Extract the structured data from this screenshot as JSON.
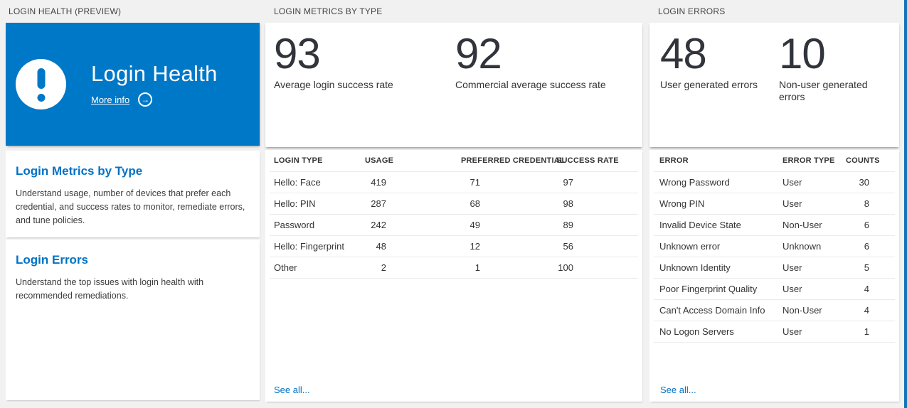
{
  "colors": {
    "accent_blue": "#0078c8",
    "link_blue": "#0072c6",
    "background": "#f1f1f1",
    "stat_text": "#31343a"
  },
  "section_headers": {
    "left": "LOGIN HEALTH (PREVIEW)",
    "middle": "LOGIN METRICS BY TYPE",
    "right": "LOGIN ERRORS"
  },
  "login_health": {
    "title": "Login Health",
    "more_info_label": "More info",
    "arrow_glyph": "→",
    "sections": [
      {
        "title": "Login Metrics by Type",
        "description": "Understand usage, number of devices that prefer each credential, and success rates to monitor, remediate errors, and tune policies."
      },
      {
        "title": "Login Errors",
        "description": "Understand the top issues with login health with recommended remediations."
      }
    ]
  },
  "login_metrics": {
    "stats": [
      {
        "value": "93",
        "label": "Average login success rate"
      },
      {
        "value": "92",
        "label": "Commercial average success rate"
      }
    ],
    "table": {
      "columns": [
        "LOGIN TYPE",
        "USAGE",
        "PREFERRED CREDENTIAL",
        "SUCCESS RATE"
      ],
      "rows": [
        [
          "Hello: Face",
          "419",
          "71",
          "97"
        ],
        [
          "Hello: PIN",
          "287",
          "68",
          "98"
        ],
        [
          "Password",
          "242",
          "49",
          "89"
        ],
        [
          "Hello: Fingerprint",
          "48",
          "12",
          "56"
        ],
        [
          "Other",
          "2",
          "1",
          "100"
        ]
      ]
    },
    "see_all_label": "See all..."
  },
  "login_errors": {
    "stats": [
      {
        "value": "48",
        "label": "User generated errors"
      },
      {
        "value": "10",
        "label": "Non-user generated errors"
      }
    ],
    "table": {
      "columns": [
        "ERROR",
        "ERROR TYPE",
        "COUNTS"
      ],
      "rows": [
        [
          "Wrong Password",
          "User",
          "30"
        ],
        [
          "Wrong PIN",
          "User",
          "8"
        ],
        [
          "Invalid Device State",
          "Non-User",
          "6"
        ],
        [
          "Unknown error",
          "Unknown",
          "6"
        ],
        [
          "Unknown Identity",
          "User",
          "5"
        ],
        [
          "Poor Fingerprint Quality",
          "User",
          "4"
        ],
        [
          "Can't Access Domain Info",
          "Non-User",
          "4"
        ],
        [
          "No Logon Servers",
          "User",
          "1"
        ]
      ]
    },
    "see_all_label": "See all..."
  }
}
